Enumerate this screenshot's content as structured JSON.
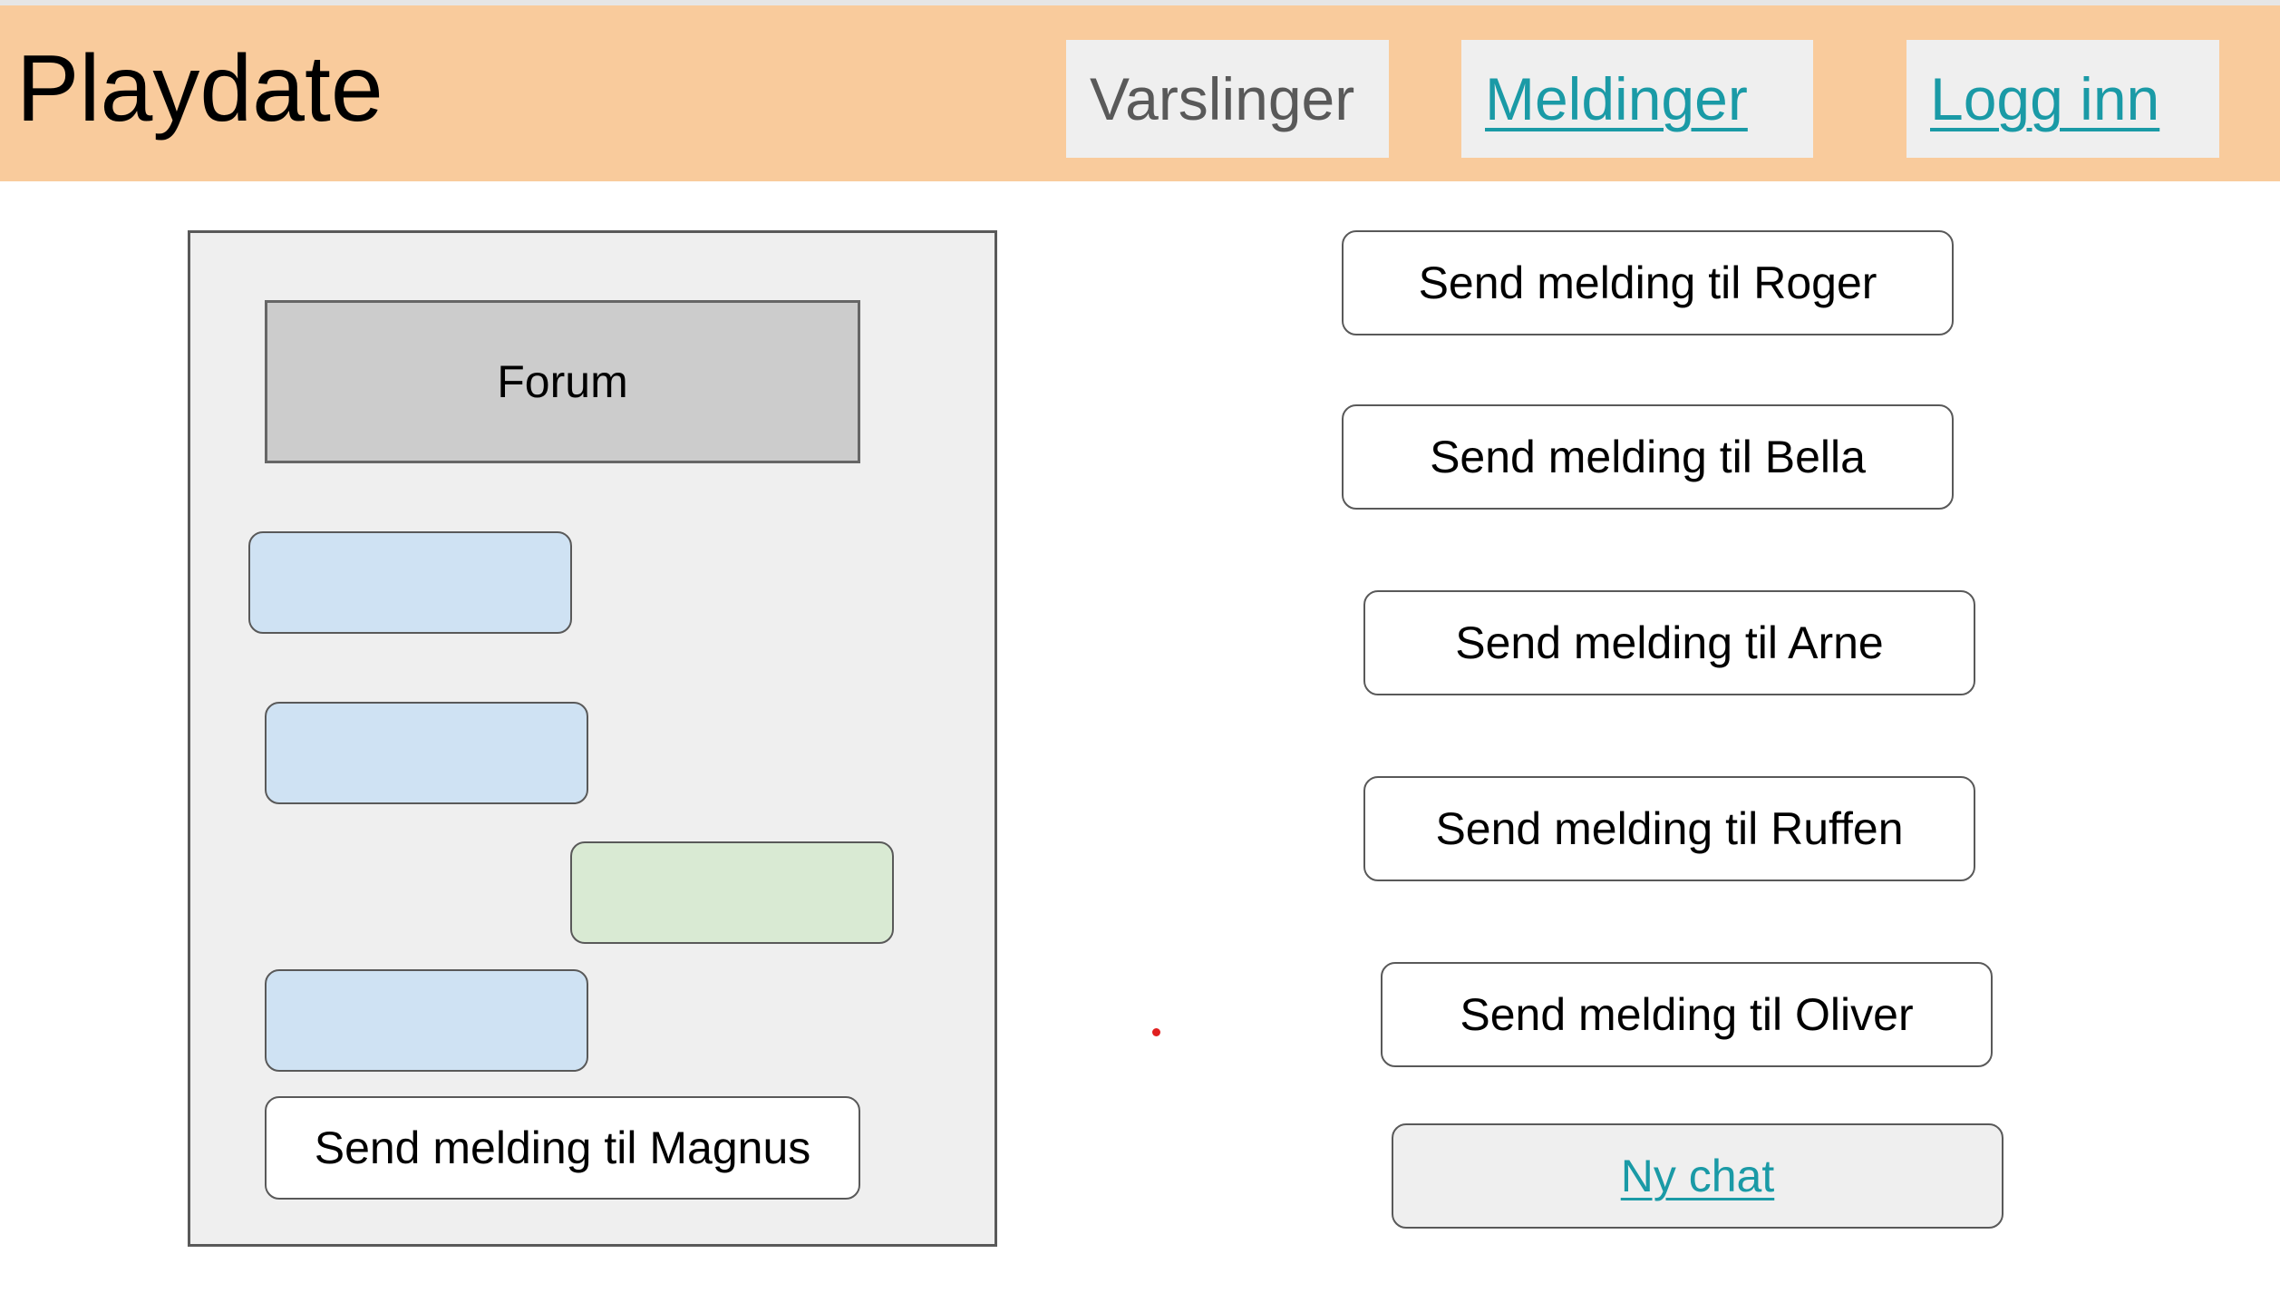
{
  "header": {
    "app_title": "Playdate",
    "nav": {
      "varslinger": "Varslinger",
      "meldinger": "Meldinger",
      "logg_inn": "Logg inn"
    }
  },
  "chat_panel": {
    "forum_label": "Forum",
    "send_magnus": "Send melding til Magnus"
  },
  "contacts": [
    {
      "label": "Send melding til Roger"
    },
    {
      "label": "Send melding til Bella"
    },
    {
      "label": "Send melding til Arne"
    },
    {
      "label": "Send melding til Ruffen"
    },
    {
      "label": "Send melding til Oliver"
    }
  ],
  "new_chat_label": "Ny chat",
  "colors": {
    "header_bg": "#f9cb9c",
    "link": "#1a9aa6",
    "bubble_incoming": "#cfe2f3",
    "bubble_outgoing": "#d9ead3",
    "forum_bg": "#cccccc"
  }
}
